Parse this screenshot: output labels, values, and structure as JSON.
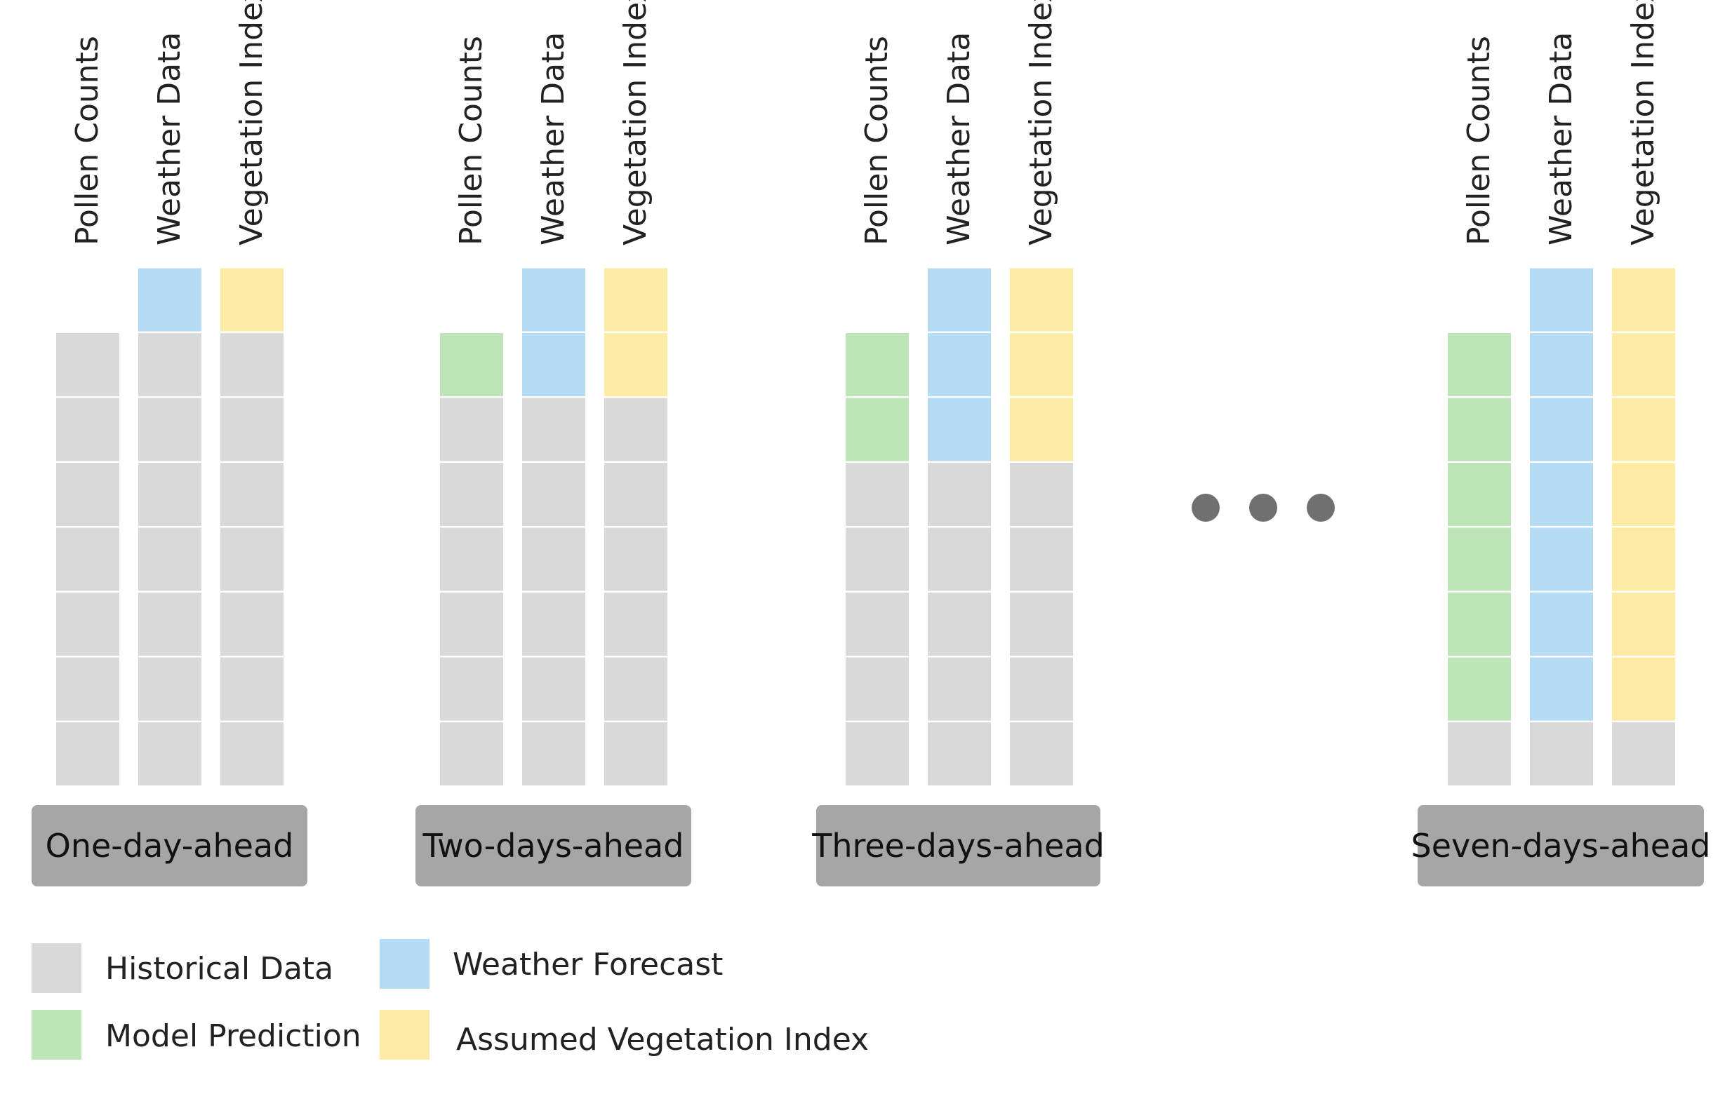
{
  "colors": {
    "historical": "#d9d9d9",
    "prediction": "#bde5b7",
    "weather_forecast": "#b5dbf5",
    "vegetation": "#fdeba3",
    "group_box": "#a6a6a6",
    "dots": "#707070"
  },
  "column_labels": [
    "Pollen Counts",
    "Weather Data",
    "Vegetation Index"
  ],
  "groups": [
    {
      "label": "One-day-ahead",
      "prediction_days": 0,
      "forecast_days": 1,
      "vegetation_days": 1
    },
    {
      "label": "Two-days-ahead",
      "prediction_days": 1,
      "forecast_days": 2,
      "vegetation_days": 2
    },
    {
      "label": "Three-days-ahead",
      "prediction_days": 2,
      "forecast_days": 3,
      "vegetation_days": 3
    },
    {
      "label": "Seven-days-ahead",
      "prediction_days": 6,
      "forecast_days": 7,
      "vegetation_days": 7
    }
  ],
  "historical_days": 7,
  "legend": [
    {
      "label": "Historical Data",
      "color_key": "historical"
    },
    {
      "label": "Model Prediction",
      "color_key": "prediction"
    },
    {
      "label": "Weather Forecast",
      "color_key": "weather_forecast"
    },
    {
      "label": "Assumed Vegetation Index",
      "color_key": "vegetation"
    }
  ]
}
